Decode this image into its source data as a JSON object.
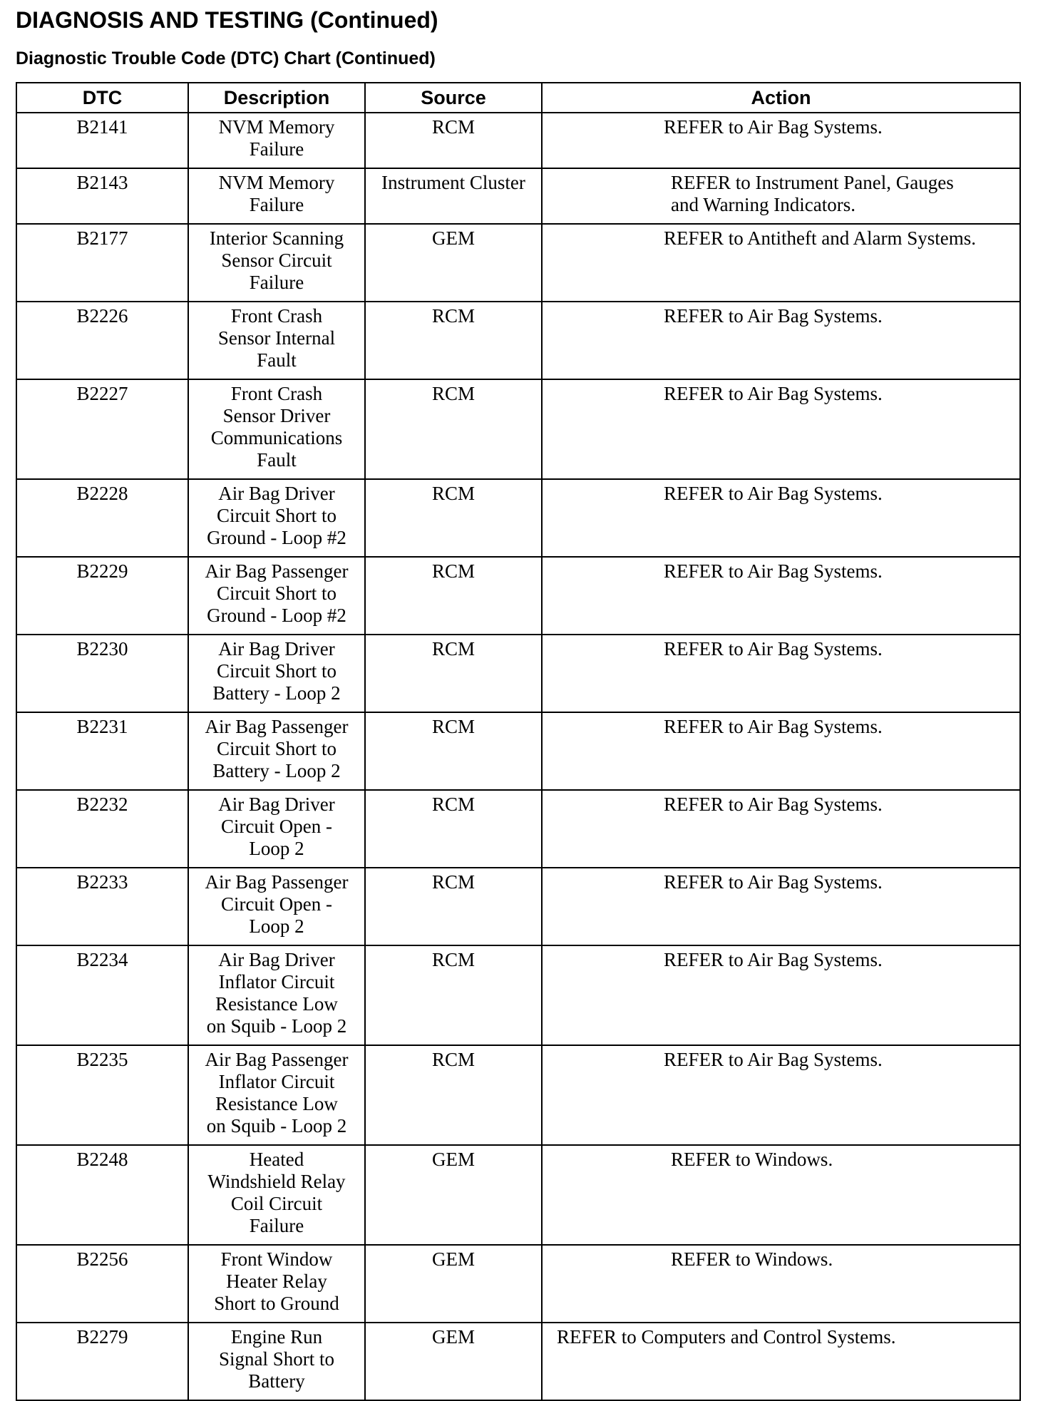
{
  "header": {
    "title": "DIAGNOSIS AND TESTING (Continued)",
    "subtitle": "Diagnostic Trouble Code (DTC) Chart (Continued)"
  },
  "table": {
    "columns": [
      "DTC",
      "Description",
      "Source",
      "Action"
    ],
    "rows": [
      {
        "dtc": "B2141",
        "description": [
          "NVM Memory",
          "Failure"
        ],
        "source": "RCM",
        "action": [
          "REFER to Air Bag Systems."
        ]
      },
      {
        "dtc": "B2143",
        "description": [
          "NVM Memory",
          "Failure"
        ],
        "source": "Instrument Cluster",
        "action": [
          "REFER to Instrument Panel, Gauges",
          "and Warning Indicators."
        ]
      },
      {
        "dtc": "B2177",
        "description": [
          "Interior Scanning",
          "Sensor Circuit",
          "Failure"
        ],
        "source": "GEM",
        "action": [
          "REFER to Antitheft and Alarm Systems."
        ]
      },
      {
        "dtc": "B2226",
        "description": [
          "Front Crash",
          "Sensor Internal",
          "Fault"
        ],
        "source": "RCM",
        "action": [
          "REFER to Air Bag Systems."
        ]
      },
      {
        "dtc": "B2227",
        "description": [
          "Front Crash",
          "Sensor Driver",
          "Communications",
          "Fault"
        ],
        "source": "RCM",
        "action": [
          "REFER to Air Bag Systems."
        ]
      },
      {
        "dtc": "B2228",
        "description": [
          "Air Bag Driver",
          "Circuit Short to",
          "Ground - Loop #2"
        ],
        "source": "RCM",
        "action": [
          "REFER to Air Bag Systems."
        ]
      },
      {
        "dtc": "B2229",
        "description": [
          "Air Bag Passenger",
          "Circuit Short to",
          "Ground - Loop #2"
        ],
        "source": "RCM",
        "action": [
          "REFER to Air Bag Systems."
        ]
      },
      {
        "dtc": "B2230",
        "description": [
          "Air Bag Driver",
          "Circuit Short to",
          "Battery - Loop 2"
        ],
        "source": "RCM",
        "action": [
          "REFER to Air Bag Systems."
        ]
      },
      {
        "dtc": "B2231",
        "description": [
          "Air Bag Passenger",
          "Circuit Short to",
          "Battery - Loop 2"
        ],
        "source": "RCM",
        "action": [
          "REFER to Air Bag Systems."
        ]
      },
      {
        "dtc": "B2232",
        "description": [
          "Air Bag Driver",
          "Circuit Open -",
          "Loop 2"
        ],
        "source": "RCM",
        "action": [
          "REFER to Air Bag Systems."
        ]
      },
      {
        "dtc": "B2233",
        "description": [
          "Air Bag Passenger",
          "Circuit Open -",
          "Loop 2"
        ],
        "source": "RCM",
        "action": [
          "REFER to Air Bag Systems."
        ]
      },
      {
        "dtc": "B2234",
        "description": [
          "Air Bag Driver",
          "Inflator Circuit",
          "Resistance Low",
          "on Squib - Loop 2"
        ],
        "source": "RCM",
        "action": [
          "REFER to Air Bag Systems."
        ]
      },
      {
        "dtc": "B2235",
        "description": [
          "Air Bag Passenger",
          "Inflator Circuit",
          "Resistance Low",
          "on Squib - Loop 2"
        ],
        "source": "RCM",
        "action": [
          "REFER to Air Bag Systems."
        ]
      },
      {
        "dtc": "B2248",
        "description": [
          "Heated",
          "Windshield Relay",
          "Coil Circuit",
          "Failure"
        ],
        "source": "GEM",
        "action": [
          "REFER to Windows."
        ]
      },
      {
        "dtc": "B2256",
        "description": [
          "Front Window",
          "Heater Relay",
          "Short to Ground"
        ],
        "source": "GEM",
        "action": [
          "REFER to Windows."
        ]
      },
      {
        "dtc": "B2279",
        "description": [
          "Engine Run",
          "Signal Short to",
          "Battery"
        ],
        "source": "GEM",
        "action": [
          "REFER to Computers and Control Systems."
        ]
      }
    ]
  }
}
